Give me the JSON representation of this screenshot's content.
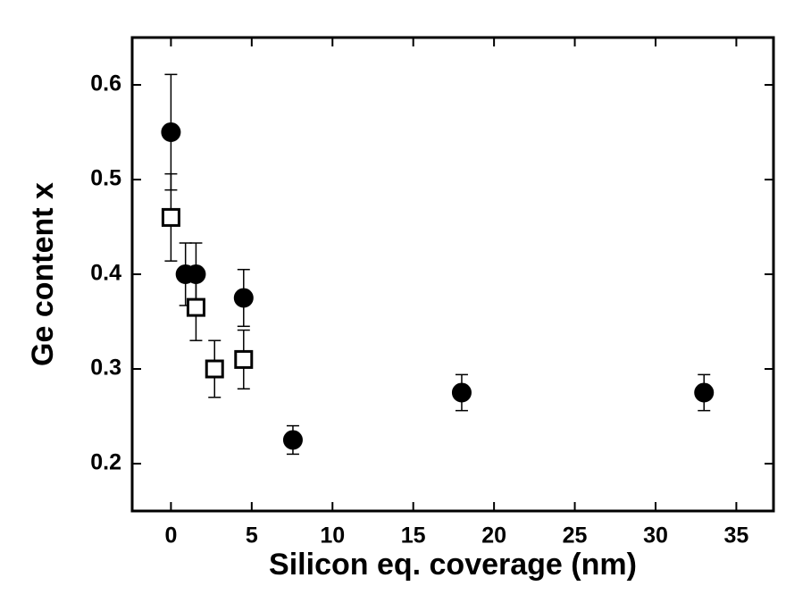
{
  "chart_data": {
    "type": "scatter",
    "xlabel": "Silicon eq. coverage (nm)",
    "ylabel": "Ge content x",
    "xlim": [
      -2.4,
      37.3
    ],
    "ylim": [
      0.15,
      0.65
    ],
    "xticks": [
      0,
      5,
      10,
      15,
      20,
      25,
      30,
      35
    ],
    "yticks": [
      0.2,
      0.3,
      0.4,
      0.5,
      0.6
    ],
    "series": [
      {
        "color": "#000000",
        "marker": "circle",
        "filled": true,
        "x": [
          0,
          0.9,
          1.55,
          4.5,
          7.55,
          18,
          33
        ],
        "values": [
          0.55,
          0.4,
          0.4,
          0.375,
          0.225,
          0.275,
          0.275
        ],
        "errors": [
          0.061,
          0.033,
          0.033,
          0.03,
          0.015,
          0.019,
          0.019
        ]
      },
      {
        "color": "#000000",
        "marker": "square",
        "filled": false,
        "x": [
          0,
          1.55,
          2.7,
          4.5
        ],
        "values": [
          0.46,
          0.365,
          0.3,
          0.31
        ],
        "errors": [
          0.046,
          0.035,
          0.03,
          0.031
        ]
      }
    ]
  }
}
